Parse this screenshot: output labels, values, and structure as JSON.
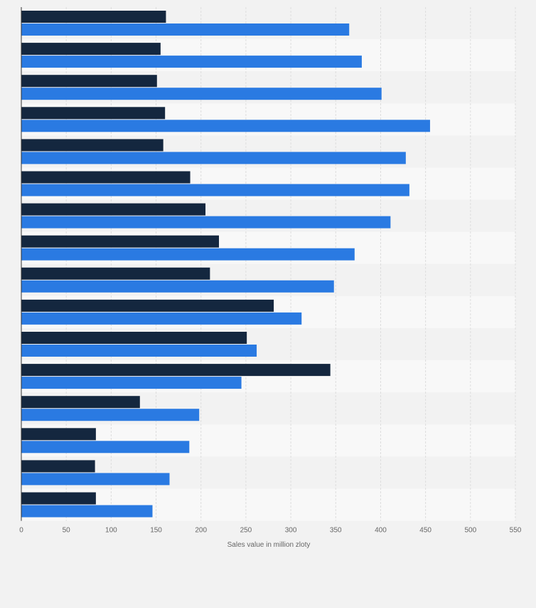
{
  "chart_data": {
    "type": "bar",
    "orientation": "horizontal",
    "categories": [
      "",
      "",
      "",
      "",
      "",
      "",
      "",
      "",
      "",
      "",
      "",
      "",
      "",
      "",
      "",
      ""
    ],
    "series": [
      {
        "color": "#14273f",
        "values": [
          161,
          155,
          151,
          160,
          158,
          188,
          205,
          220,
          210,
          281,
          251,
          344,
          132,
          83,
          82,
          83
        ]
      },
      {
        "color": "#2a7ae2",
        "values": [
          365,
          379,
          401,
          455,
          428,
          432,
          411,
          371,
          348,
          312,
          262,
          245,
          198,
          187,
          165,
          146
        ]
      }
    ],
    "xlabel": "Sales value in million zloty",
    "xlim": [
      0,
      550
    ],
    "xticks": [
      0,
      50,
      100,
      150,
      200,
      250,
      300,
      350,
      400,
      450,
      500,
      550
    ],
    "grid": true,
    "legend": "none"
  }
}
